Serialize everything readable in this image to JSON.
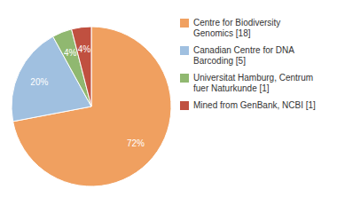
{
  "chart_data": {
    "type": "pie",
    "categories": [
      "Centre for Biodiversity\nGenomics [18]",
      "Canadian Centre for DNA\nBarcoding [5]",
      "Universitat Hamburg, Centrum\nfuer Naturkunde [1]",
      "Mined from GenBank, NCBI [1]"
    ],
    "values": [
      72,
      20,
      4,
      4
    ],
    "value_labels": [
      "72%",
      "20%",
      "4%",
      "4%"
    ],
    "data_labels": true,
    "colors": [
      "#f0a060",
      "#a0c0e0",
      "#90b870",
      "#c05040"
    ],
    "legend": "right"
  }
}
